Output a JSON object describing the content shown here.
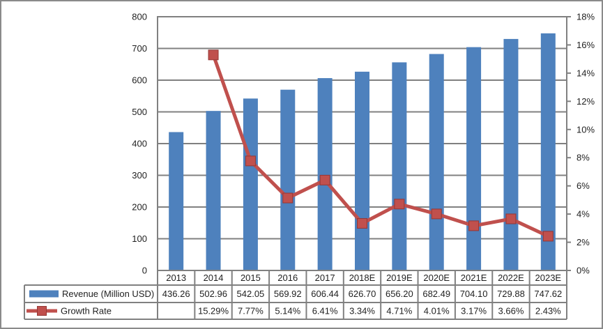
{
  "chart_data": {
    "type": "combo-bar-line",
    "title": "",
    "categories": [
      "2013",
      "2014",
      "2015",
      "2016",
      "2017",
      "2018E",
      "2019E",
      "2020E",
      "2021E",
      "2022E",
      "2023E"
    ],
    "series": [
      {
        "name": "Revenue (Million USD)",
        "type": "bar",
        "axis": "left",
        "color": "#4E81BD",
        "values": [
          436.26,
          502.96,
          542.05,
          569.92,
          606.44,
          626.7,
          656.2,
          682.49,
          704.1,
          729.88,
          747.62
        ],
        "labels": [
          "436.26",
          "502.96",
          "542.05",
          "569.92",
          "606.44",
          "626.70",
          "656.20",
          "682.49",
          "704.10",
          "729.88",
          "747.62"
        ]
      },
      {
        "name": "Growth Rate",
        "type": "line",
        "axis": "right",
        "color": "#C0504D",
        "marker_border": "#953735",
        "values": [
          null,
          15.29,
          7.77,
          5.14,
          6.41,
          3.34,
          4.71,
          4.01,
          3.17,
          3.66,
          2.43
        ],
        "labels": [
          "",
          "15.29%",
          "7.77%",
          "5.14%",
          "6.41%",
          "3.34%",
          "4.71%",
          "4.01%",
          "3.17%",
          "3.66%",
          "2.43%"
        ]
      }
    ],
    "left_axis": {
      "min": 0,
      "max": 800,
      "step": 100,
      "tick_labels": [
        "0",
        "100",
        "200",
        "300",
        "400",
        "500",
        "600",
        "700",
        "800"
      ]
    },
    "right_axis": {
      "min": 0,
      "max": 18,
      "step": 2,
      "tick_labels": [
        "0%",
        "2%",
        "4%",
        "6%",
        "8%",
        "10%",
        "12%",
        "14%",
        "16%",
        "18%"
      ]
    },
    "gridlines": "horizontal",
    "legend_position": "data-table-left",
    "colors": {
      "bar": "#4E81BD",
      "line": "#C0504D",
      "gridline": "#808080",
      "plot_border": "#808080",
      "table_border": "#808080",
      "frame_border": "#8a8a8a",
      "text": "#1f1f1f",
      "background": "#ffffff"
    }
  }
}
